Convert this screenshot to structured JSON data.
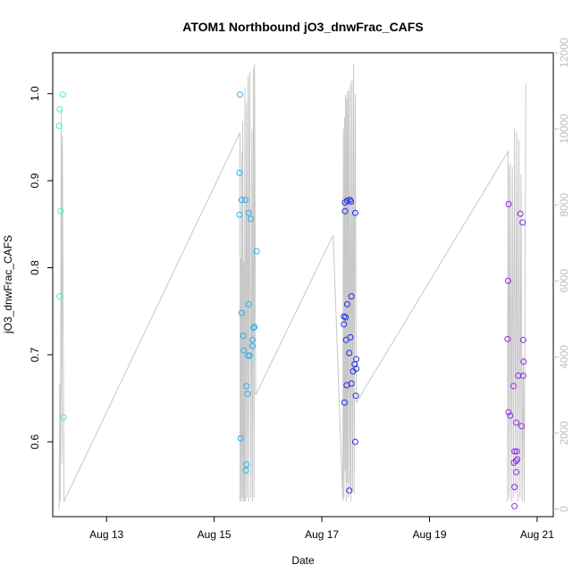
{
  "chart_data": {
    "type": "scatter",
    "title": "ATOM1 Northbound jO3_dnwFrac_CAFS",
    "xlabel": "Date",
    "ylabel": "jO3_dnwFrac_CAFS",
    "x_ticks": [
      {
        "label": "Aug 13",
        "day": 13
      },
      {
        "label": "Aug 15",
        "day": 15
      },
      {
        "label": "Aug 17",
        "day": 17
      },
      {
        "label": "Aug 19",
        "day": 19
      },
      {
        "label": "Aug 21",
        "day": 21
      }
    ],
    "xlim_day": [
      12.0,
      21.3
    ],
    "y_left_ticks": [
      "0.6",
      "0.7",
      "0.8",
      "0.9",
      "1.0"
    ],
    "ylim_left": [
      0.514,
      1.047
    ],
    "y_right_ticks": [
      "0",
      "2000",
      "4000",
      "6000",
      "8000",
      "10000",
      "12000"
    ],
    "ylim_right": [
      -200,
      12000
    ],
    "point_colors": {
      "flight1": "#3cf5b9",
      "flight2": "#28b2ee",
      "flight3": "#1f2df0",
      "flight4": "#8a2ee0"
    },
    "line_color": "#c8c8c8",
    "series": [
      {
        "values": [
          [
            12.13,
            0.982
          ],
          [
            12.12,
            0.963
          ],
          [
            12.19,
            0.999
          ],
          [
            12.15,
            0.865
          ],
          [
            12.13,
            0.767
          ],
          [
            12.2,
            0.628
          ]
        ]
      },
      {
        "values": [
          [
            15.48,
            0.999
          ],
          [
            15.47,
            0.909
          ],
          [
            15.47,
            0.861
          ],
          [
            15.51,
            0.878
          ],
          [
            15.58,
            0.878
          ],
          [
            15.64,
            0.863
          ],
          [
            15.68,
            0.856
          ],
          [
            15.79,
            0.819
          ],
          [
            15.64,
            0.758
          ],
          [
            15.51,
            0.748
          ],
          [
            15.73,
            0.731
          ],
          [
            15.75,
            0.732
          ],
          [
            15.54,
            0.722
          ],
          [
            15.71,
            0.717
          ],
          [
            15.71,
            0.71
          ],
          [
            15.55,
            0.705
          ],
          [
            15.63,
            0.699
          ],
          [
            15.66,
            0.699
          ],
          [
            15.6,
            0.664
          ],
          [
            15.62,
            0.655
          ],
          [
            15.49,
            0.604
          ],
          [
            15.6,
            0.574
          ],
          [
            15.59,
            0.567
          ]
        ]
      },
      {
        "values": [
          [
            17.43,
            0.875
          ],
          [
            17.47,
            0.877
          ],
          [
            17.52,
            0.878
          ],
          [
            17.54,
            0.876
          ],
          [
            17.43,
            0.865
          ],
          [
            17.62,
            0.863
          ],
          [
            17.55,
            0.767
          ],
          [
            17.47,
            0.758
          ],
          [
            17.41,
            0.744
          ],
          [
            17.44,
            0.743
          ],
          [
            17.41,
            0.735
          ],
          [
            17.45,
            0.717
          ],
          [
            17.53,
            0.72
          ],
          [
            17.51,
            0.702
          ],
          [
            17.64,
            0.695
          ],
          [
            17.61,
            0.689
          ],
          [
            17.58,
            0.681
          ],
          [
            17.64,
            0.684
          ],
          [
            17.55,
            0.667
          ],
          [
            17.46,
            0.665
          ],
          [
            17.63,
            0.653
          ],
          [
            17.42,
            0.645
          ],
          [
            17.62,
            0.6
          ],
          [
            17.51,
            0.544
          ]
        ]
      },
      {
        "values": [
          [
            20.47,
            0.873
          ],
          [
            20.69,
            0.862
          ],
          [
            20.73,
            0.852
          ],
          [
            20.46,
            0.785
          ],
          [
            20.45,
            0.718
          ],
          [
            20.74,
            0.717
          ],
          [
            20.75,
            0.692
          ],
          [
            20.65,
            0.676
          ],
          [
            20.74,
            0.676
          ],
          [
            20.56,
            0.664
          ],
          [
            20.47,
            0.634
          ],
          [
            20.5,
            0.63
          ],
          [
            20.61,
            0.622
          ],
          [
            20.71,
            0.618
          ],
          [
            20.58,
            0.589
          ],
          [
            20.62,
            0.589
          ],
          [
            20.63,
            0.58
          ],
          [
            20.61,
            0.578
          ],
          [
            20.57,
            0.576
          ],
          [
            20.61,
            0.565
          ],
          [
            20.58,
            0.548
          ],
          [
            20.58,
            0.526
          ]
        ]
      }
    ],
    "altitude_line": [
      [
        12.12,
        5.9
      ],
      [
        12.13,
        3300
      ],
      [
        12.14,
        200
      ],
      [
        12.16,
        10500
      ],
      [
        12.17,
        1200
      ],
      [
        12.18,
        9800
      ],
      [
        12.21,
        200
      ],
      [
        15.48,
        9900
      ],
      [
        15.48,
        200
      ],
      [
        15.49,
        6600
      ],
      [
        15.5,
        200
      ],
      [
        15.51,
        9400
      ],
      [
        15.52,
        300
      ],
      [
        15.53,
        10200
      ],
      [
        15.54,
        200
      ],
      [
        15.55,
        6500
      ],
      [
        15.56,
        200
      ],
      [
        15.57,
        11100
      ],
      [
        15.58,
        200
      ],
      [
        15.6,
        10700
      ],
      [
        15.61,
        300
      ],
      [
        15.63,
        11400
      ],
      [
        15.64,
        200
      ],
      [
        15.66,
        11500
      ],
      [
        15.68,
        300
      ],
      [
        15.7,
        10000
      ],
      [
        15.71,
        200
      ],
      [
        15.73,
        11600
      ],
      [
        15.74,
        300
      ],
      [
        15.75,
        11700
      ],
      [
        15.77,
        3000
      ],
      [
        17.21,
        7200
      ],
      [
        17.39,
        200
      ],
      [
        17.4,
        10000
      ],
      [
        17.41,
        300
      ],
      [
        17.42,
        10300
      ],
      [
        17.43,
        1000
      ],
      [
        17.44,
        10900
      ],
      [
        17.45,
        200
      ],
      [
        17.46,
        10800
      ],
      [
        17.47,
        700
      ],
      [
        17.48,
        11000
      ],
      [
        17.49,
        300
      ],
      [
        17.5,
        11000
      ],
      [
        17.52,
        500
      ],
      [
        17.53,
        11200
      ],
      [
        17.54,
        200
      ],
      [
        17.56,
        11300
      ],
      [
        17.57,
        500
      ],
      [
        17.59,
        11700
      ],
      [
        17.6,
        400
      ],
      [
        17.62,
        10900
      ],
      [
        17.64,
        2800
      ],
      [
        20.46,
        9400
      ],
      [
        20.45,
        200
      ],
      [
        20.47,
        9000
      ],
      [
        20.48,
        300
      ],
      [
        20.5,
        9100
      ],
      [
        20.52,
        200
      ],
      [
        20.54,
        9000
      ],
      [
        20.56,
        300
      ],
      [
        20.58,
        10000
      ],
      [
        20.6,
        400
      ],
      [
        20.62,
        9900
      ],
      [
        20.64,
        200
      ],
      [
        20.66,
        9700
      ],
      [
        20.68,
        300
      ],
      [
        20.7,
        8800
      ],
      [
        20.72,
        200
      ],
      [
        20.74,
        4000
      ],
      [
        20.76,
        200
      ],
      [
        20.79,
        11200
      ]
    ]
  }
}
